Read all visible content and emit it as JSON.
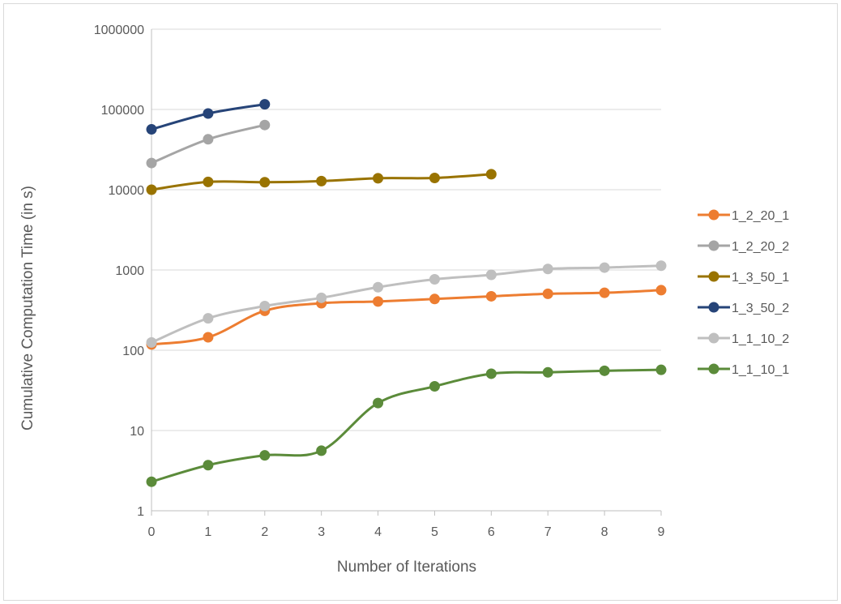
{
  "chart_data": {
    "type": "line",
    "xlabel": "Number of Iterations",
    "ylabel": "Cumulative Computation Time (in s)",
    "yscale": "log",
    "ylim": [
      1,
      1000000
    ],
    "xlim": [
      0,
      9
    ],
    "x_ticks": [
      "0",
      "1",
      "2",
      "3",
      "4",
      "5",
      "6",
      "7",
      "8",
      "9"
    ],
    "y_ticks": [
      "1",
      "10",
      "100",
      "1000",
      "10000",
      "100000",
      "1000000"
    ],
    "y_tick_values": [
      1,
      10,
      100,
      1000,
      10000,
      100000,
      1000000
    ],
    "grid": true,
    "legend_position": "right",
    "series": [
      {
        "name": "1_2_20_1",
        "color": "#ED7D31",
        "x": [
          0,
          1,
          2,
          3,
          4,
          5,
          6,
          7,
          8,
          9
        ],
        "values": [
          118,
          145,
          310,
          385,
          405,
          435,
          470,
          505,
          520,
          560
        ]
      },
      {
        "name": "1_2_20_2",
        "color": "#A5A5A5",
        "x": [
          0,
          1,
          2
        ],
        "values": [
          21500,
          42500,
          64000
        ]
      },
      {
        "name": "1_3_50_1",
        "color": "#997300",
        "x": [
          0,
          1,
          2,
          3,
          4,
          5,
          6
        ],
        "values": [
          10000,
          12500,
          12400,
          12800,
          13900,
          14000,
          15600
        ]
      },
      {
        "name": "1_3_50_2",
        "color": "#264478",
        "x": [
          0,
          1,
          2
        ],
        "values": [
          56500,
          89000,
          116000
        ]
      },
      {
        "name": "1_1_10_2",
        "color": "#BFBFBF",
        "x": [
          0,
          1,
          2,
          3,
          4,
          5,
          6,
          7,
          8,
          9
        ],
        "values": [
          125,
          250,
          355,
          450,
          610,
          765,
          870,
          1030,
          1070,
          1130
        ]
      },
      {
        "name": "1_1_10_1",
        "color": "#5B8B3A",
        "x": [
          0,
          1,
          2,
          3,
          4,
          5,
          6,
          7,
          8,
          9
        ],
        "values": [
          2.3,
          3.7,
          4.9,
          5.6,
          22,
          35.5,
          51,
          53,
          55.5,
          57
        ]
      }
    ]
  }
}
